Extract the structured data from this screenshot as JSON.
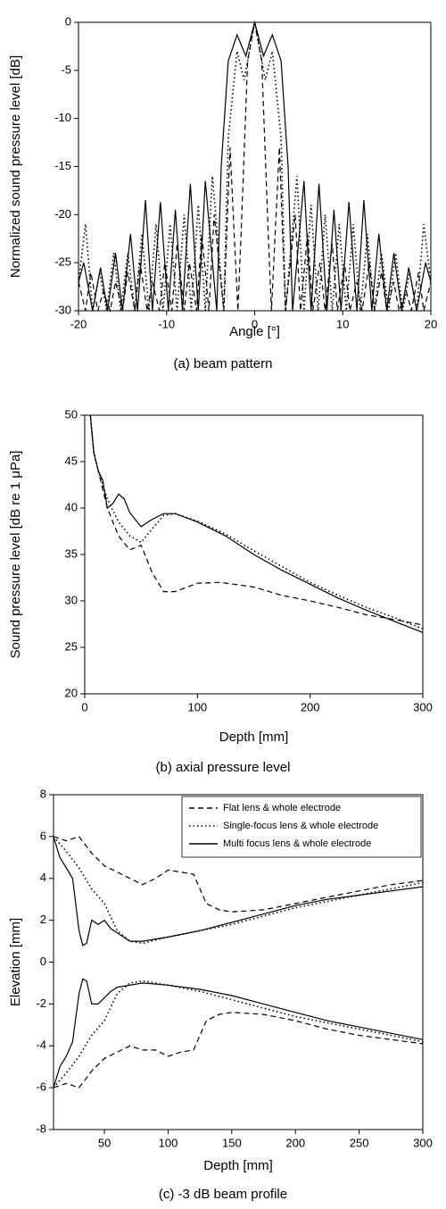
{
  "chart_data": [
    {
      "type": "line",
      "caption": "(a) beam pattern",
      "x_label": "Angle [°]",
      "y_label": "Normalized sound pressure level [dB]",
      "xlim": [
        -20,
        20
      ],
      "xticks": [
        -20,
        -10,
        0,
        10,
        20
      ],
      "ylim": [
        -30,
        0
      ],
      "yticks": [
        -30,
        -25,
        -20,
        -15,
        -10,
        -5,
        0
      ],
      "grid": false,
      "series": [
        {
          "color": "#000000",
          "style": "solid",
          "x": [
            -20,
            -19.4,
            -18.4,
            -17.5,
            -16.7,
            -15.8,
            -15,
            -14.1,
            -13.3,
            -12.4,
            -11.6,
            -10.7,
            -9.8,
            -9,
            -8.2,
            -7.3,
            -6.4,
            -5.6,
            -4.3,
            -3.8,
            -3,
            -2,
            -1,
            0,
            1,
            2,
            3,
            3.8,
            4.3,
            5.6,
            6.4,
            7.3,
            8.2,
            9,
            9.8,
            10.7,
            11.6,
            12.4,
            13.3,
            14.1,
            15,
            15.8,
            16.7,
            17.5,
            18.4,
            19.4,
            20
          ],
          "values": [
            -27,
            -25,
            -30,
            -25.5,
            -30,
            -24,
            -30,
            -22,
            -30,
            -18.5,
            -30,
            -18.7,
            -30,
            -19.5,
            -30,
            -16.8,
            -30,
            -16.5,
            -30,
            -15,
            -4,
            -1.3,
            -3.5,
            0,
            -3.5,
            -1.3,
            -4,
            -15,
            -30,
            -16.5,
            -30,
            -16.8,
            -30,
            -19.5,
            -30,
            -18.7,
            -30,
            -18.5,
            -30,
            -22,
            -30,
            -24,
            -30,
            -25.5,
            -30,
            -25,
            -27
          ]
        },
        {
          "color": "#000000",
          "style": "dotted",
          "x": [
            -20,
            -19.2,
            -18.4,
            -17.6,
            -16.8,
            -16,
            -15.2,
            -14.4,
            -13.6,
            -12.8,
            -12,
            -11.2,
            -10.4,
            -9.6,
            -8.8,
            -8,
            -7.2,
            -6.4,
            -5.6,
            -4.8,
            -3.5,
            -3,
            -2,
            -1.2,
            0,
            1.2,
            2,
            3,
            3.5,
            4.8,
            5.6,
            6.4,
            7.2,
            8,
            8.8,
            9.6,
            10.4,
            11.2,
            12,
            12.8,
            13.6,
            14.4,
            15.2,
            16,
            16.8,
            17.6,
            18.4,
            19.2,
            20
          ],
          "values": [
            -27,
            -21,
            -30,
            -26,
            -30,
            -24,
            -30,
            -24,
            -30,
            -22,
            -30,
            -21,
            -30,
            -21,
            -30,
            -20,
            -30,
            -19,
            -30,
            -16,
            -30,
            -12,
            -3,
            -6,
            0,
            -6,
            -3,
            -12,
            -30,
            -16,
            -30,
            -19,
            -30,
            -20,
            -30,
            -21,
            -30,
            -21,
            -30,
            -22,
            -30,
            -24,
            -30,
            -24,
            -30,
            -26,
            -30,
            -21,
            -27
          ]
        },
        {
          "color": "#000000",
          "style": "dashed",
          "x": [
            -20,
            -19.2,
            -18.6,
            -17.8,
            -17.2,
            -16.4,
            -15.8,
            -15,
            -14.4,
            -13.6,
            -13,
            -12.2,
            -11.6,
            -10.8,
            -10.2,
            -9.4,
            -8.8,
            -8,
            -7.4,
            -6.6,
            -6,
            -5.2,
            -4.6,
            -3.5,
            -2.8,
            -1.9,
            -1.5,
            -0.8,
            0,
            0.8,
            1.5,
            1.9,
            2.8,
            3.5,
            4.6,
            5.2,
            6,
            6.6,
            7.4,
            8,
            8.8,
            9.4,
            10.2,
            10.8,
            11.6,
            12.2,
            13,
            13.6,
            14.4,
            15,
            15.8,
            16.4,
            17.2,
            17.8,
            18.6,
            19.2,
            20
          ],
          "values": [
            -27,
            -30,
            -26,
            -30,
            -28,
            -30,
            -27,
            -30,
            -26,
            -30,
            -25,
            -30,
            -27,
            -30,
            -25,
            -30,
            -23,
            -30,
            -25,
            -30,
            -22,
            -30,
            -20,
            -30,
            -13,
            -30,
            -21,
            -4,
            0,
            -4,
            -21,
            -30,
            -13,
            -30,
            -20,
            -30,
            -22,
            -30,
            -25,
            -30,
            -23,
            -30,
            -25,
            -30,
            -27,
            -30,
            -25,
            -30,
            -26,
            -30,
            -27,
            -30,
            -28,
            -30,
            -26,
            -30,
            -27
          ]
        }
      ]
    },
    {
      "type": "line",
      "caption": "(b) axial pressure level",
      "x_label": "Depth [mm]",
      "y_label": "Sound pressure level [dB re 1 μPa]",
      "xlim": [
        0,
        300
      ],
      "xticks": [
        0,
        100,
        200,
        300
      ],
      "ylim": [
        20,
        50
      ],
      "yticks": [
        20,
        25,
        30,
        35,
        40,
        45,
        50
      ],
      "grid": false,
      "series": [
        {
          "color": "#000000",
          "style": "solid",
          "x": [
            5,
            8,
            12,
            16,
            20,
            25,
            30,
            35,
            40,
            50,
            60,
            70,
            80,
            100,
            125,
            150,
            175,
            200,
            225,
            250,
            275,
            300
          ],
          "values": [
            50,
            46,
            44,
            43,
            40,
            40.5,
            41.5,
            41,
            39.5,
            38,
            38.8,
            39.4,
            39.4,
            38.5,
            37,
            35,
            33.3,
            31.8,
            30.3,
            29,
            27.8,
            26.6
          ]
        },
        {
          "color": "#000000",
          "style": "dotted",
          "x": [
            5,
            8,
            12,
            20,
            30,
            40,
            50,
            60,
            70,
            80,
            100,
            125,
            150,
            175,
            200,
            225,
            250,
            275,
            300
          ],
          "values": [
            50,
            46,
            44,
            41,
            38.5,
            37,
            36.3,
            37.8,
            39.2,
            39.4,
            38.6,
            37.2,
            35.4,
            33.7,
            32,
            30.6,
            29.3,
            28.2,
            27
          ]
        },
        {
          "color": "#000000",
          "style": "dashed",
          "x": [
            5,
            8,
            12,
            20,
            30,
            40,
            50,
            60,
            70,
            80,
            100,
            120,
            150,
            175,
            200,
            225,
            250,
            275,
            300
          ],
          "values": [
            50,
            46,
            44,
            40,
            37,
            35.5,
            36,
            33,
            31,
            31,
            31.9,
            32,
            31.5,
            30.6,
            30,
            29.3,
            28.5,
            28,
            27.4
          ]
        }
      ]
    },
    {
      "type": "band-line",
      "caption": "(c) -3 dB beam profile",
      "x_label": "Depth [mm]",
      "y_label": "Elevation [mm]",
      "xlim": [
        10,
        300
      ],
      "xticks": [
        50,
        100,
        150,
        200,
        250,
        300
      ],
      "ylim": [
        -8,
        8
      ],
      "yticks": [
        -8,
        -6,
        -4,
        -2,
        0,
        2,
        4,
        6,
        8
      ],
      "grid": false,
      "legend": "upper right",
      "series": [
        {
          "name": "Flat lens & whole electrode",
          "color": "#000000",
          "style": "dashed",
          "x": [
            10,
            20,
            30,
            40,
            50,
            60,
            70,
            80,
            90,
            100,
            110,
            120,
            125,
            130,
            140,
            150,
            175,
            200,
            225,
            250,
            275,
            300
          ],
          "upper": [
            6,
            5.8,
            6,
            5.2,
            4.6,
            4.3,
            4,
            3.7,
            4,
            4.4,
            4.3,
            4.2,
            3.5,
            2.8,
            2.5,
            2.4,
            2.5,
            2.8,
            3.1,
            3.4,
            3.7,
            3.9
          ],
          "lower": [
            -6,
            -5.8,
            -6,
            -5.2,
            -4.6,
            -4.3,
            -4,
            -4.2,
            -4.2,
            -4.5,
            -4.3,
            -4.2,
            -3.5,
            -2.8,
            -2.5,
            -2.4,
            -2.5,
            -2.8,
            -3.2,
            -3.5,
            -3.7,
            -3.9
          ]
        },
        {
          "name": "Single-focus lens & whole electrode",
          "color": "#000000",
          "style": "dotted",
          "x": [
            10,
            20,
            30,
            40,
            50,
            60,
            70,
            80,
            100,
            125,
            150,
            175,
            200,
            225,
            250,
            275,
            300
          ],
          "upper": [
            6,
            5.3,
            4.5,
            3.5,
            2.8,
            1.5,
            1,
            0.9,
            1.2,
            1.5,
            1.8,
            2.2,
            2.6,
            2.9,
            3.2,
            3.5,
            3.8
          ],
          "lower": [
            -6,
            -5.3,
            -4.5,
            -3.5,
            -2.8,
            -1.5,
            -1,
            -0.9,
            -1.1,
            -1.4,
            -1.8,
            -2.2,
            -2.6,
            -2.9,
            -3.2,
            -3.5,
            -3.8
          ]
        },
        {
          "name": "Multi focus lens & whole electrode",
          "color": "#000000",
          "style": "solid",
          "x": [
            10,
            15,
            20,
            25,
            30,
            33,
            36,
            40,
            45,
            50,
            55,
            60,
            70,
            80,
            100,
            125,
            150,
            175,
            200,
            225,
            250,
            275,
            300
          ],
          "upper": [
            6,
            5,
            4.5,
            4,
            1.5,
            0.8,
            0.9,
            2,
            1.8,
            2,
            1.6,
            1.4,
            1,
            1,
            1.2,
            1.5,
            1.9,
            2.3,
            2.7,
            3,
            3.2,
            3.4,
            3.6
          ],
          "lower": [
            -6,
            -5,
            -4.5,
            -3.8,
            -1.5,
            -0.8,
            -0.9,
            -2,
            -2,
            -1.7,
            -1.4,
            -1.2,
            -1.1,
            -1,
            -1.1,
            -1.3,
            -1.6,
            -2,
            -2.4,
            -2.8,
            -3.1,
            -3.4,
            -3.7
          ]
        }
      ]
    }
  ]
}
